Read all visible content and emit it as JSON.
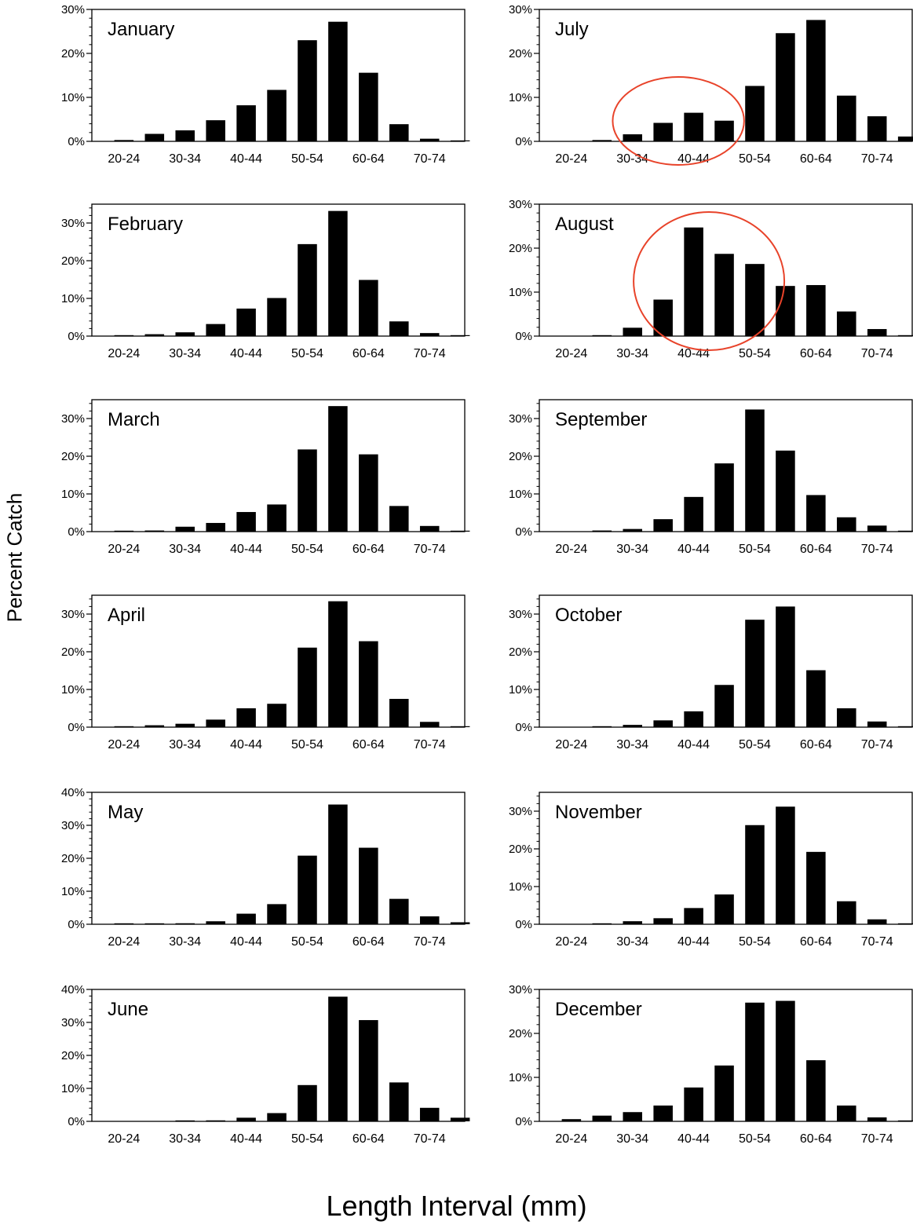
{
  "figure": {
    "ylabel": "Percent Catch",
    "xlabel": "Length Interval (mm)"
  },
  "chart_data": [
    {
      "type": "bar",
      "title": "January",
      "categories": [
        "20-24",
        "25-29",
        "30-34",
        "35-39",
        "40-44",
        "45-49",
        "50-54",
        "55-59",
        "60-64",
        "65-69",
        "70-74",
        "75-79"
      ],
      "tick_labels": [
        "20-24",
        "30-34",
        "40-44",
        "50-54",
        "60-64",
        "70-74"
      ],
      "values": [
        0.3,
        1.7,
        2.5,
        4.8,
        8.2,
        11.7,
        23.0,
        27.2,
        15.6,
        3.9,
        0.6,
        0.2
      ],
      "ylim": [
        0,
        30
      ],
      "yticks": [
        "0%",
        "10%",
        "20%",
        "30%"
      ]
    },
    {
      "type": "bar",
      "title": "February",
      "categories": [
        "20-24",
        "25-29",
        "30-34",
        "35-39",
        "40-44",
        "45-49",
        "50-54",
        "55-59",
        "60-64",
        "65-69",
        "70-74",
        "75-79"
      ],
      "tick_labels": [
        "20-24",
        "30-34",
        "40-44",
        "50-54",
        "60-64",
        "70-74"
      ],
      "values": [
        0.2,
        0.5,
        1.0,
        3.2,
        7.3,
        10.1,
        24.4,
        33.2,
        14.9,
        3.9,
        0.8,
        0.2
      ],
      "ylim": [
        0,
        35
      ],
      "yticks": [
        "0%",
        "10%",
        "20%",
        "30%"
      ]
    },
    {
      "type": "bar",
      "title": "March",
      "categories": [
        "20-24",
        "25-29",
        "30-34",
        "35-39",
        "40-44",
        "45-49",
        "50-54",
        "55-59",
        "60-64",
        "65-69",
        "70-74",
        "75-79"
      ],
      "tick_labels": [
        "20-24",
        "30-34",
        "40-44",
        "50-54",
        "60-64",
        "70-74"
      ],
      "values": [
        0.1,
        0.3,
        1.3,
        2.3,
        5.2,
        7.2,
        21.8,
        33.3,
        20.5,
        6.8,
        1.5,
        0.2
      ],
      "ylim": [
        0,
        35
      ],
      "yticks": [
        "0%",
        "10%",
        "20%",
        "30%"
      ]
    },
    {
      "type": "bar",
      "title": "April",
      "categories": [
        "20-24",
        "25-29",
        "30-34",
        "35-39",
        "40-44",
        "45-49",
        "50-54",
        "55-59",
        "60-64",
        "65-69",
        "70-74",
        "75-79"
      ],
      "tick_labels": [
        "20-24",
        "30-34",
        "40-44",
        "50-54",
        "60-64",
        "70-74"
      ],
      "values": [
        0.1,
        0.5,
        0.9,
        2.0,
        5.0,
        6.2,
        21.1,
        33.4,
        22.8,
        7.5,
        1.4,
        0.2
      ],
      "ylim": [
        0,
        35
      ],
      "yticks": [
        "0%",
        "10%",
        "20%",
        "30%"
      ]
    },
    {
      "type": "bar",
      "title": "May",
      "categories": [
        "20-24",
        "25-29",
        "30-34",
        "35-39",
        "40-44",
        "45-49",
        "50-54",
        "55-59",
        "60-64",
        "65-69",
        "70-74",
        "75-79"
      ],
      "tick_labels": [
        "20-24",
        "30-34",
        "40-44",
        "50-54",
        "60-64",
        "70-74"
      ],
      "values": [
        0.1,
        0.1,
        0.3,
        0.9,
        3.2,
        6.1,
        20.8,
        36.3,
        23.2,
        7.7,
        2.4,
        0.6
      ],
      "ylim": [
        0,
        40
      ],
      "yticks": [
        "0%",
        "10%",
        "20%",
        "30%",
        "40%"
      ]
    },
    {
      "type": "bar",
      "title": "June",
      "categories": [
        "20-24",
        "25-29",
        "30-34",
        "35-39",
        "40-44",
        "45-49",
        "50-54",
        "55-59",
        "60-64",
        "65-69",
        "70-74",
        "75-79"
      ],
      "tick_labels": [
        "20-24",
        "30-34",
        "40-44",
        "50-54",
        "60-64",
        "70-74"
      ],
      "values": [
        0,
        0,
        0.1,
        0.3,
        1.1,
        2.5,
        11.0,
        37.8,
        30.7,
        11.8,
        4.1,
        1.1
      ],
      "ylim": [
        0,
        40
      ],
      "yticks": [
        "0%",
        "10%",
        "20%",
        "30%",
        "40%"
      ]
    },
    {
      "type": "bar",
      "title": "July",
      "categories": [
        "20-24",
        "25-29",
        "30-34",
        "35-39",
        "40-44",
        "45-49",
        "50-54",
        "55-59",
        "60-64",
        "65-69",
        "70-74",
        "75-79"
      ],
      "tick_labels": [
        "20-24",
        "30-34",
        "40-44",
        "50-54",
        "60-64",
        "70-74"
      ],
      "values": [
        0,
        0.3,
        1.6,
        4.2,
        6.5,
        4.7,
        12.6,
        24.6,
        27.6,
        10.4,
        5.7,
        1.1
      ],
      "ylim": [
        0,
        30
      ],
      "yticks": [
        "0%",
        "10%",
        "20%",
        "30%"
      ]
    },
    {
      "type": "bar",
      "title": "August",
      "categories": [
        "20-24",
        "25-29",
        "30-34",
        "35-39",
        "40-44",
        "45-49",
        "50-54",
        "55-59",
        "60-64",
        "65-69",
        "70-74",
        "75-79"
      ],
      "tick_labels": [
        "20-24",
        "30-34",
        "40-44",
        "50-54",
        "60-64",
        "70-74"
      ],
      "values": [
        0,
        0.2,
        1.9,
        8.3,
        24.7,
        18.7,
        16.4,
        11.4,
        11.6,
        5.6,
        1.6,
        0.2
      ],
      "ylim": [
        0,
        30
      ],
      "yticks": [
        "0%",
        "10%",
        "20%",
        "30%"
      ]
    },
    {
      "type": "bar",
      "title": "September",
      "categories": [
        "20-24",
        "25-29",
        "30-34",
        "35-39",
        "40-44",
        "45-49",
        "50-54",
        "55-59",
        "60-64",
        "65-69",
        "70-74",
        "75-79"
      ],
      "tick_labels": [
        "20-24",
        "30-34",
        "40-44",
        "50-54",
        "60-64",
        "70-74"
      ],
      "values": [
        0,
        0.3,
        0.7,
        3.3,
        9.2,
        18.1,
        32.4,
        21.5,
        9.7,
        3.8,
        1.6,
        0.2
      ],
      "ylim": [
        0,
        35
      ],
      "yticks": [
        "0%",
        "10%",
        "20%",
        "30%"
      ]
    },
    {
      "type": "bar",
      "title": "October",
      "categories": [
        "20-24",
        "25-29",
        "30-34",
        "35-39",
        "40-44",
        "45-49",
        "50-54",
        "55-59",
        "60-64",
        "65-69",
        "70-74",
        "75-79"
      ],
      "tick_labels": [
        "20-24",
        "30-34",
        "40-44",
        "50-54",
        "60-64",
        "70-74"
      ],
      "values": [
        0,
        0.2,
        0.6,
        1.8,
        4.2,
        11.2,
        28.5,
        32.0,
        15.1,
        5.0,
        1.5,
        0.2
      ],
      "ylim": [
        0,
        35
      ],
      "yticks": [
        "0%",
        "10%",
        "20%",
        "30%"
      ]
    },
    {
      "type": "bar",
      "title": "November",
      "categories": [
        "20-24",
        "25-29",
        "30-34",
        "35-39",
        "40-44",
        "45-49",
        "50-54",
        "55-59",
        "60-64",
        "65-69",
        "70-74",
        "75-79"
      ],
      "tick_labels": [
        "20-24",
        "30-34",
        "40-44",
        "50-54",
        "60-64",
        "70-74"
      ],
      "values": [
        0,
        0.2,
        0.8,
        1.6,
        4.3,
        7.9,
        26.3,
        31.2,
        19.2,
        6.1,
        1.3,
        0.1
      ],
      "ylim": [
        0,
        35
      ],
      "yticks": [
        "0%",
        "10%",
        "20%",
        "30%"
      ]
    },
    {
      "type": "bar",
      "title": "December",
      "categories": [
        "20-24",
        "25-29",
        "30-34",
        "35-39",
        "40-44",
        "45-49",
        "50-54",
        "55-59",
        "60-64",
        "65-69",
        "70-74",
        "75-79"
      ],
      "tick_labels": [
        "20-24",
        "30-34",
        "40-44",
        "50-54",
        "60-64",
        "70-74"
      ],
      "values": [
        0.5,
        1.3,
        2.1,
        3.6,
        7.7,
        12.7,
        27.0,
        27.4,
        13.9,
        3.6,
        0.9,
        0.2
      ],
      "ylim": [
        0,
        30
      ],
      "yticks": [
        "0%",
        "10%",
        "20%",
        "30%"
      ]
    }
  ],
  "annotations": [
    {
      "panel": "July",
      "shape": "ellipse",
      "color": "#e8432a",
      "data_span": [
        "30-34",
        "45-49"
      ],
      "note": ""
    },
    {
      "panel": "August",
      "shape": "circle",
      "color": "#e8432a",
      "data_span": [
        "35-39",
        "50-54"
      ],
      "note": ""
    }
  ],
  "colors": {
    "bar": "#000000",
    "axis": "#000000",
    "annotation": "#e8432a"
  }
}
